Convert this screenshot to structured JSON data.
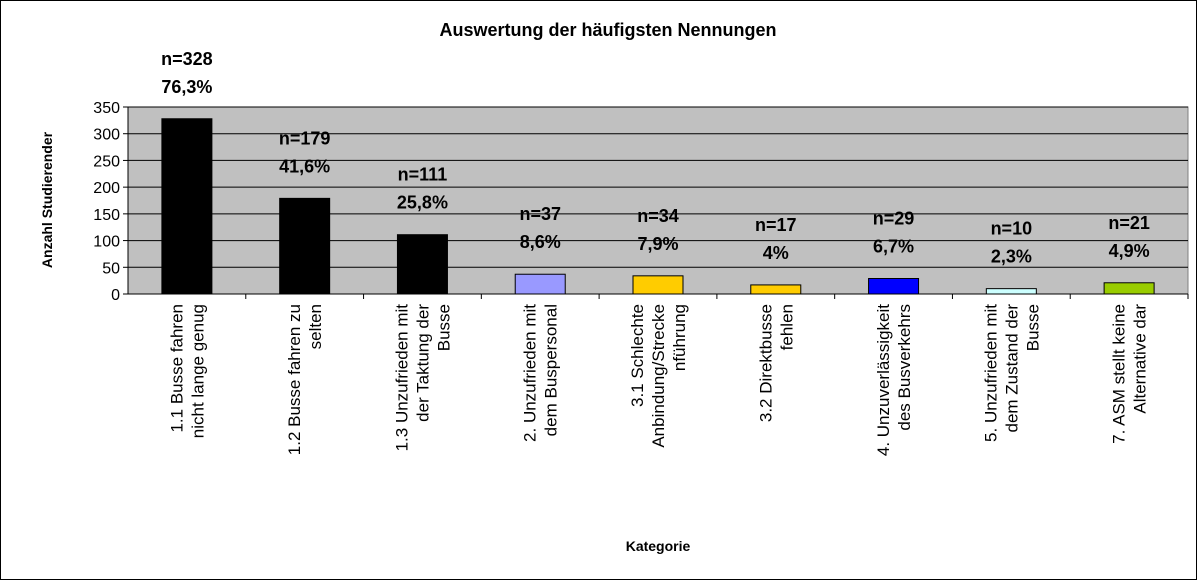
{
  "chart_data": {
    "type": "bar",
    "title": "Auswertung der häufigsten Nennungen",
    "ylabel": "Anzahl Studierender",
    "xlabel": "Kategorie",
    "categories": [
      "1.1 Busse fahren\nnicht lange genug",
      "1.2 Busse fahren zu\nselten",
      "1.3 Unzufrieden mit\nder Taktung der\nBusse",
      "2. Unzufrieden mit\ndem Buspersonal",
      "3.1 Schlechte\nAnbindung/Strecke\nnführung",
      "3.2 Direktbusse\nfehlen",
      "4. Unzuverlässigkeit\ndes Busverkehrs",
      "5. Unzufrieden mit\ndem Zustand der\nBusse",
      "7. ASM stellt keine\nAlternative dar"
    ],
    "values": [
      328,
      179,
      111,
      37,
      34,
      17,
      29,
      10,
      21
    ],
    "value_labels": [
      "n=328",
      "n=179",
      "n=111",
      "n=37",
      "n=34",
      "n=17",
      "n=29",
      "n=10",
      "n=21"
    ],
    "percent_labels": [
      "76,3%",
      "41,6%",
      "25,8%",
      "8,6%",
      "7,9%",
      "4%",
      "6,7%",
      "2,3%",
      "4,9%"
    ],
    "colors": [
      "#000000",
      "#000000",
      "#000000",
      "#9999ff",
      "#ffcc00",
      "#ffcc00",
      "#0000ff",
      "#ccffff",
      "#99cc00"
    ],
    "ylim": [
      0,
      350
    ],
    "yticks": [
      0,
      50,
      100,
      150,
      200,
      250,
      300,
      350
    ],
    "grid": true
  }
}
